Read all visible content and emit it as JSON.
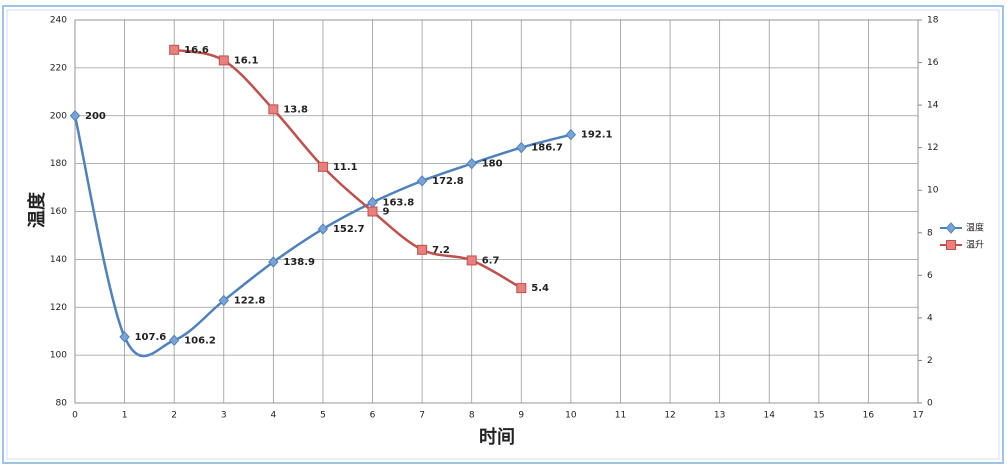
{
  "chart_data": {
    "type": "line",
    "x": [
      0,
      1,
      2,
      3,
      4,
      5,
      6,
      7,
      8,
      9,
      10
    ],
    "series": [
      {
        "name": "温度",
        "color": "#4f81bd",
        "values": [
          200,
          107.6,
          106.2,
          122.8,
          138.9,
          152.7,
          163.8,
          172.8,
          180,
          186.7,
          192.1
        ]
      },
      {
        "name": "温升",
        "color": "#c0504d",
        "axis": "y2",
        "values": [
          null,
          null,
          16.6,
          16.1,
          13.8,
          11.1,
          9,
          7.2,
          6.7,
          5.4,
          null
        ]
      }
    ],
    "x_label": "时间",
    "y_label": "温度",
    "xlim": [
      0,
      17
    ],
    "xticks": [
      0,
      1,
      2,
      3,
      4,
      5,
      6,
      7,
      8,
      9,
      10,
      11,
      12,
      13,
      14,
      15,
      16,
      17
    ],
    "ylim": [
      80,
      240
    ],
    "yticks": [
      80,
      100,
      120,
      140,
      160,
      180,
      200,
      220,
      240
    ],
    "y2lim": [
      0,
      18
    ],
    "y2ticks": [
      0,
      2,
      4,
      6,
      8,
      10,
      12,
      14,
      16,
      18
    ],
    "grid": true,
    "smooth": true,
    "data_labels": true,
    "legend": "right"
  }
}
